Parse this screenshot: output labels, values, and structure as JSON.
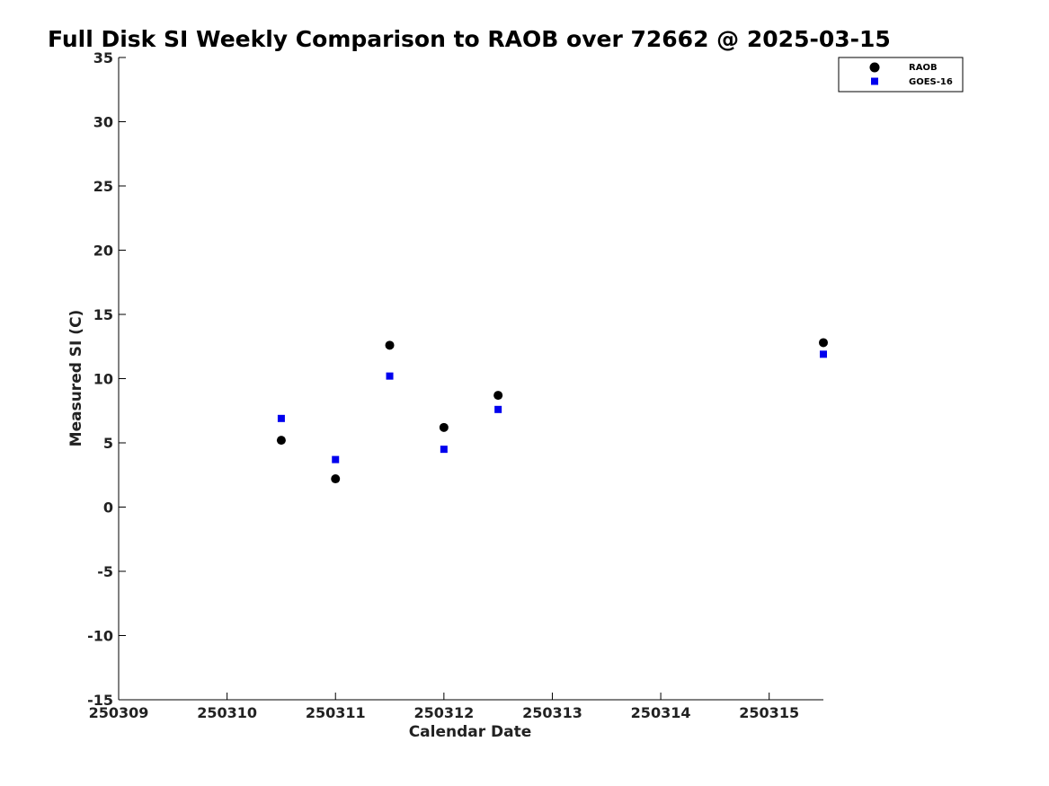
{
  "chart_data": {
    "type": "scatter",
    "title": "Full Disk SI Weekly Comparison to RAOB over 72662 @ 2025-03-15",
    "xlabel": "Calendar Date",
    "ylabel": "Measured SI (C)",
    "xlim": [
      "2025-03-09",
      "2025-03-15T12:00"
    ],
    "ylim": [
      -15,
      35
    ],
    "x_ticks": [
      "2025-03-09",
      "2025-03-10",
      "2025-03-11",
      "2025-03-12",
      "2025-03-13",
      "2025-03-14",
      "2025-03-15"
    ],
    "x_tick_labels": [
      "250309",
      "250310",
      "250311",
      "250312",
      "250313",
      "250314",
      "250315"
    ],
    "y_ticks": [
      -15,
      -10,
      -5,
      0,
      5,
      10,
      15,
      20,
      25,
      30,
      35
    ],
    "grid": false,
    "legend_position": "top-right",
    "series": [
      {
        "name": "RAOB",
        "marker": "circle",
        "color": "#000000",
        "points": [
          {
            "x": "2025-03-10T12:00",
            "y": 5.2
          },
          {
            "x": "2025-03-11T00:00",
            "y": 2.2
          },
          {
            "x": "2025-03-11T12:00",
            "y": 12.6
          },
          {
            "x": "2025-03-12T00:00",
            "y": 6.2
          },
          {
            "x": "2025-03-12T12:00",
            "y": 8.7
          },
          {
            "x": "2025-03-15T12:00",
            "y": 12.8
          }
        ]
      },
      {
        "name": "GOES-16",
        "marker": "square",
        "color": "#0000ee",
        "points": [
          {
            "x": "2025-03-10T12:00",
            "y": 6.9
          },
          {
            "x": "2025-03-11T00:00",
            "y": 3.7
          },
          {
            "x": "2025-03-11T12:00",
            "y": 10.2
          },
          {
            "x": "2025-03-12T00:00",
            "y": 4.5
          },
          {
            "x": "2025-03-12T12:00",
            "y": 7.6
          },
          {
            "x": "2025-03-15T12:00",
            "y": 11.9
          }
        ]
      }
    ]
  }
}
